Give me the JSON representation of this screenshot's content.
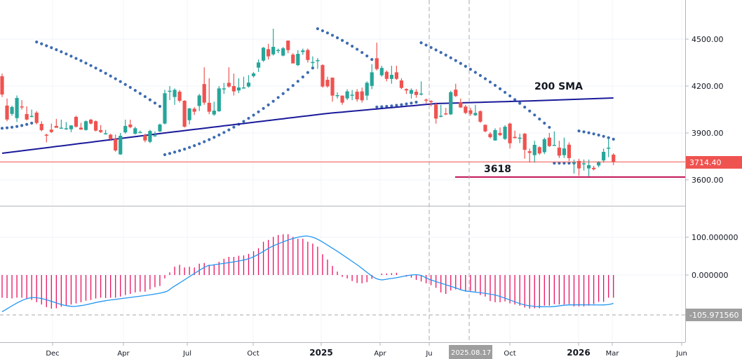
{
  "chart_data": [
    {
      "type": "candlestick",
      "panel": "price",
      "interval": "weekly",
      "ylim": [
        3500,
        4700
      ],
      "y_ticks": [
        "4500.00",
        "4200.00",
        "3900.00",
        "3600.00"
      ],
      "y_tick_values": [
        4500,
        4200,
        3900,
        3600
      ],
      "grid": true,
      "colors": {
        "up": "#26a69a",
        "down": "#ef5350",
        "sma": "#1a1a9a",
        "psar": "#3d6bb0",
        "last_price": "#ef5350",
        "support": "#c2185b"
      },
      "candles_ohlc": [
        [
          4263,
          4280,
          4130,
          4146
        ],
        [
          4075,
          4120,
          3975,
          3986
        ],
        [
          4022,
          4075,
          4010,
          4066
        ],
        [
          3995,
          4140,
          3970,
          4124
        ],
        [
          4070,
          4110,
          4050,
          4065
        ],
        [
          4021,
          4070,
          3980,
          3986
        ],
        [
          4009,
          4050,
          4000,
          4009
        ],
        [
          4030,
          4040,
          3955,
          3964
        ],
        [
          3958,
          3975,
          3910,
          3918
        ],
        [
          3889,
          3895,
          3840,
          3885
        ],
        [
          3921,
          3960,
          3900,
          3906
        ],
        [
          3945,
          3990,
          3935,
          3933
        ],
        [
          3934,
          3985,
          3930,
          3934
        ],
        [
          3930,
          3970,
          3920,
          3930
        ],
        [
          3924,
          3950,
          3905,
          3948
        ],
        [
          4003,
          4010,
          3935,
          3940
        ],
        [
          3934,
          3965,
          3920,
          3922
        ],
        [
          3919,
          3980,
          3915,
          3975
        ],
        [
          3985,
          3990,
          3955,
          3960
        ],
        [
          3975,
          3980,
          3910,
          3915
        ],
        [
          3918,
          3950,
          3900,
          3906
        ],
        [
          3898,
          3920,
          3890,
          3898
        ],
        [
          3889,
          3895,
          3855,
          3861
        ],
        [
          3862,
          3890,
          3780,
          3788
        ],
        [
          3763,
          3900,
          3760,
          3882
        ],
        [
          3904,
          3985,
          3895,
          3945
        ],
        [
          3954,
          3985,
          3930,
          3937
        ],
        [
          3895,
          3940,
          3890,
          3930
        ],
        [
          3906,
          3915,
          3900,
          3906
        ],
        [
          3885,
          3895,
          3840,
          3852
        ],
        [
          3843,
          3920,
          3835,
          3913
        ],
        [
          3885,
          3910,
          3875,
          3885
        ],
        [
          3910,
          3960,
          3905,
          3954
        ],
        [
          3960,
          4176,
          3955,
          4154
        ],
        [
          4170,
          4200,
          4110,
          4170
        ],
        [
          4130,
          4185,
          4080,
          4176
        ],
        [
          4164,
          4175,
          4095,
          4106
        ],
        [
          4106,
          4110,
          3935,
          3940
        ],
        [
          3982,
          4060,
          3955,
          4057
        ],
        [
          4055,
          4065,
          4015,
          4036
        ],
        [
          4073,
          4150,
          4040,
          4140
        ],
        [
          4213,
          4320,
          4080,
          4094
        ],
        [
          4093,
          4250,
          4020,
          4036
        ],
        [
          4018,
          4100,
          4010,
          4043
        ],
        [
          4039,
          4200,
          4035,
          4185
        ],
        [
          4185,
          4220,
          4150,
          4185
        ],
        [
          4221,
          4320,
          4190,
          4197
        ],
        [
          4200,
          4280,
          4140,
          4166
        ],
        [
          4172,
          4250,
          4155,
          4191
        ],
        [
          4191,
          4260,
          4185,
          4191
        ],
        [
          4197,
          4270,
          4190,
          4222
        ],
        [
          4264,
          4290,
          4255,
          4281
        ],
        [
          4318,
          4370,
          4290,
          4351
        ],
        [
          4363,
          4450,
          4355,
          4445
        ],
        [
          4436,
          4470,
          4370,
          4390
        ],
        [
          4403,
          4567,
          4395,
          4451
        ],
        [
          4431,
          4440,
          4410,
          4431
        ],
        [
          4395,
          4450,
          4390,
          4442
        ],
        [
          4491,
          4492,
          4410,
          4430
        ],
        [
          4401,
          4410,
          4345,
          4345
        ],
        [
          4334,
          4430,
          4328,
          4406
        ],
        [
          4418,
          4440,
          4400,
          4428
        ],
        [
          4431,
          4440,
          4350,
          4367
        ],
        [
          4354,
          4390,
          4320,
          4354
        ],
        [
          4366,
          4380,
          4310,
          4366
        ],
        [
          4334,
          4340,
          4190,
          4197
        ],
        [
          4240,
          4260,
          4190,
          4198
        ],
        [
          4254,
          4255,
          4100,
          4139
        ],
        [
          4142,
          4160,
          4120,
          4142
        ],
        [
          4139,
          4140,
          4080,
          4094
        ],
        [
          4121,
          4180,
          4110,
          4166
        ],
        [
          4145,
          4175,
          4110,
          4145
        ],
        [
          4164,
          4180,
          4100,
          4115
        ],
        [
          4166,
          4190,
          4095,
          4109
        ],
        [
          4139,
          4230,
          4110,
          4221
        ],
        [
          4201,
          4340,
          4180,
          4288
        ],
        [
          4378,
          4478,
          4300,
          4309
        ],
        [
          4269,
          4330,
          4260,
          4316
        ],
        [
          4291,
          4300,
          4230,
          4246
        ],
        [
          4246,
          4330,
          4215,
          4272
        ],
        [
          4288,
          4330,
          4240,
          4246
        ],
        [
          4236,
          4250,
          4180,
          4188
        ],
        [
          4181,
          4185,
          4150,
          4172
        ],
        [
          4151,
          4185,
          4120,
          4175
        ],
        [
          4164,
          4180,
          4125,
          4143
        ],
        [
          4152,
          4230,
          4140,
          4152
        ],
        [
          4113,
          4120,
          4090,
          4109
        ],
        [
          4104,
          4110,
          4070,
          4097
        ],
        [
          4082,
          4095,
          3960,
          3992
        ],
        [
          4010,
          4080,
          4000,
          4010
        ],
        [
          4025,
          4060,
          4015,
          4022
        ],
        [
          4019,
          4170,
          4015,
          4161
        ],
        [
          4177,
          4215,
          4130,
          4136
        ],
        [
          4097,
          4120,
          4060,
          4063
        ],
        [
          4069,
          4080,
          4020,
          4028
        ],
        [
          4045,
          4060,
          4010,
          4022
        ],
        [
          4013,
          4080,
          4010,
          4028
        ],
        [
          4039,
          4045,
          3965,
          3972
        ],
        [
          3952,
          3955,
          3905,
          3910
        ],
        [
          3894,
          3905,
          3865,
          3873
        ],
        [
          3852,
          3930,
          3850,
          3918
        ],
        [
          3900,
          3935,
          3880,
          3886
        ],
        [
          3862,
          3950,
          3855,
          3940
        ],
        [
          3960,
          3965,
          3800,
          3834
        ],
        [
          3875,
          3915,
          3865,
          3867
        ],
        [
          3870,
          3895,
          3835,
          3870
        ],
        [
          3895,
          3900,
          3735,
          3792
        ],
        [
          3783,
          3800,
          3710,
          3772
        ],
        [
          3758,
          3850,
          3710,
          3824
        ],
        [
          3809,
          3815,
          3760,
          3769
        ],
        [
          3777,
          3870,
          3765,
          3860
        ],
        [
          3870,
          3900,
          3810,
          3816
        ],
        [
          3824,
          3910,
          3820,
          3824
        ],
        [
          3806,
          3850,
          3740,
          3755
        ],
        [
          3758,
          3870,
          3740,
          3801
        ],
        [
          3825,
          3840,
          3720,
          3739
        ],
        [
          3713,
          3730,
          3640,
          3713
        ],
        [
          3721,
          3735,
          3625,
          3673
        ],
        [
          3706,
          3730,
          3660,
          3706
        ],
        [
          3673,
          3730,
          3620,
          3694
        ],
        [
          3677,
          3690,
          3660,
          3668
        ],
        [
          3692,
          3720,
          3680,
          3712
        ],
        [
          3724,
          3800,
          3710,
          3779
        ],
        [
          3806,
          3860,
          3745,
          3806
        ],
        [
          3761,
          3770,
          3695,
          3714.4
        ]
      ],
      "sma200_points": [
        [
          0,
          3770
        ],
        [
          33,
          3900
        ],
        [
          66,
          4025
        ],
        [
          88,
          4088
        ],
        [
          108,
          4106
        ],
        [
          124,
          4124
        ]
      ],
      "psar_segments": [
        {
          "from": 0,
          "to": 6,
          "start": 3930,
          "end": 3963,
          "side": "below"
        },
        {
          "from": 7,
          "to": 32,
          "start": 4482,
          "end": 4070,
          "side": "above"
        },
        {
          "from": 33,
          "to": 63,
          "start": 3761,
          "end": 4316,
          "side": "below"
        },
        {
          "from": 64,
          "to": 75,
          "start": 4567,
          "end": 4370,
          "side": "above"
        },
        {
          "from": 76,
          "to": 84,
          "start": 4066,
          "end": 4097,
          "side": "below"
        },
        {
          "from": 85,
          "to": 111,
          "start": 4477,
          "end": 3936,
          "side": "above"
        },
        {
          "from": 112,
          "to": 116,
          "start": 3707,
          "end": 3707,
          "side": "below"
        },
        {
          "from": 117,
          "to": 124,
          "start": 3913,
          "end": 3860,
          "side": "above"
        }
      ],
      "last_price": 3714.4,
      "last_price_label": "3714.40",
      "support_level": 3618,
      "annotations": {
        "sma_label": "200 SMA",
        "support_label": "3618"
      }
    },
    {
      "type": "bar+line",
      "panel": "macd",
      "ylim": [
        -175,
        180
      ],
      "y_ticks": [
        "100.000000",
        "0.000000"
      ],
      "y_tick_values": [
        100,
        0
      ],
      "current_value": -105.97156,
      "current_value_label": "-105.971560",
      "colors": {
        "histogram": "#e8115e",
        "signal": "#2196f3",
        "label_bg": "#9e9e9e"
      },
      "histogram": [
        -60,
        -61,
        -62,
        -60,
        -60,
        -63,
        -66,
        -72,
        -78,
        -85,
        -89,
        -88,
        -84,
        -80,
        -78,
        -75,
        -72,
        -68,
        -66,
        -62,
        -60,
        -61,
        -60,
        -60,
        -57,
        -53,
        -50,
        -46,
        -44,
        -44,
        -38,
        -32,
        -29,
        -9,
        7,
        22,
        27,
        20,
        22,
        20,
        30,
        32,
        27,
        28,
        35,
        43,
        48,
        48,
        51,
        52,
        56,
        63,
        71,
        88,
        93,
        101,
        106,
        108,
        108,
        101,
        96,
        96,
        88,
        83,
        75,
        55,
        41,
        24,
        9,
        -5,
        -9,
        -16,
        -21,
        -22,
        -19,
        -10,
        0,
        4,
        4,
        5,
        6,
        0,
        -4,
        -7,
        -13,
        -17,
        -22,
        -27,
        -34,
        -46,
        -50,
        -41,
        -38,
        -38,
        -44,
        -42,
        -44,
        -53,
        -57,
        -69,
        -72,
        -72,
        -70,
        -75,
        -78,
        -81,
        -86,
        -89,
        -88,
        -88,
        -81,
        -81,
        -77,
        -78,
        -78,
        -77,
        -83,
        -83,
        -83,
        -81,
        -77,
        -71,
        -71,
        -60,
        -60
      ],
      "signal_points": [
        [
          0,
          -97
        ],
        [
          6,
          -60
        ],
        [
          13,
          -81
        ],
        [
          16,
          -81
        ],
        [
          21,
          -68
        ],
        [
          32,
          -48
        ],
        [
          35,
          -29
        ],
        [
          41,
          20
        ],
        [
          43,
          27
        ],
        [
          50,
          43
        ],
        [
          55,
          77
        ],
        [
          60,
          100
        ],
        [
          63,
          100
        ],
        [
          67,
          71
        ],
        [
          72,
          27
        ],
        [
          76,
          -10
        ],
        [
          79,
          -9
        ],
        [
          84,
          1
        ],
        [
          87,
          -13
        ],
        [
          92,
          -34
        ],
        [
          94,
          -42
        ],
        [
          100,
          -53
        ],
        [
          106,
          -79
        ],
        [
          111,
          -84
        ],
        [
          115,
          -79
        ],
        [
          122,
          -79
        ],
        [
          124,
          -75
        ]
      ]
    }
  ],
  "x_axis": {
    "labels": [
      {
        "text": "Dec",
        "bold": false
      },
      {
        "text": "Apr",
        "bold": false
      },
      {
        "text": "Jul",
        "bold": false
      },
      {
        "text": "Oct",
        "bold": false
      },
      {
        "text": "2025",
        "bold": true
      },
      {
        "text": "Apr",
        "bold": false
      },
      {
        "text": "Ju",
        "bold": false
      },
      {
        "text": "Oct",
        "bold": false
      },
      {
        "text": "2026",
        "bold": true
      },
      {
        "text": "Mar",
        "bold": false
      },
      {
        "text": "Jun",
        "bold": false
      }
    ],
    "crosshair_date": "2025.08.17"
  }
}
